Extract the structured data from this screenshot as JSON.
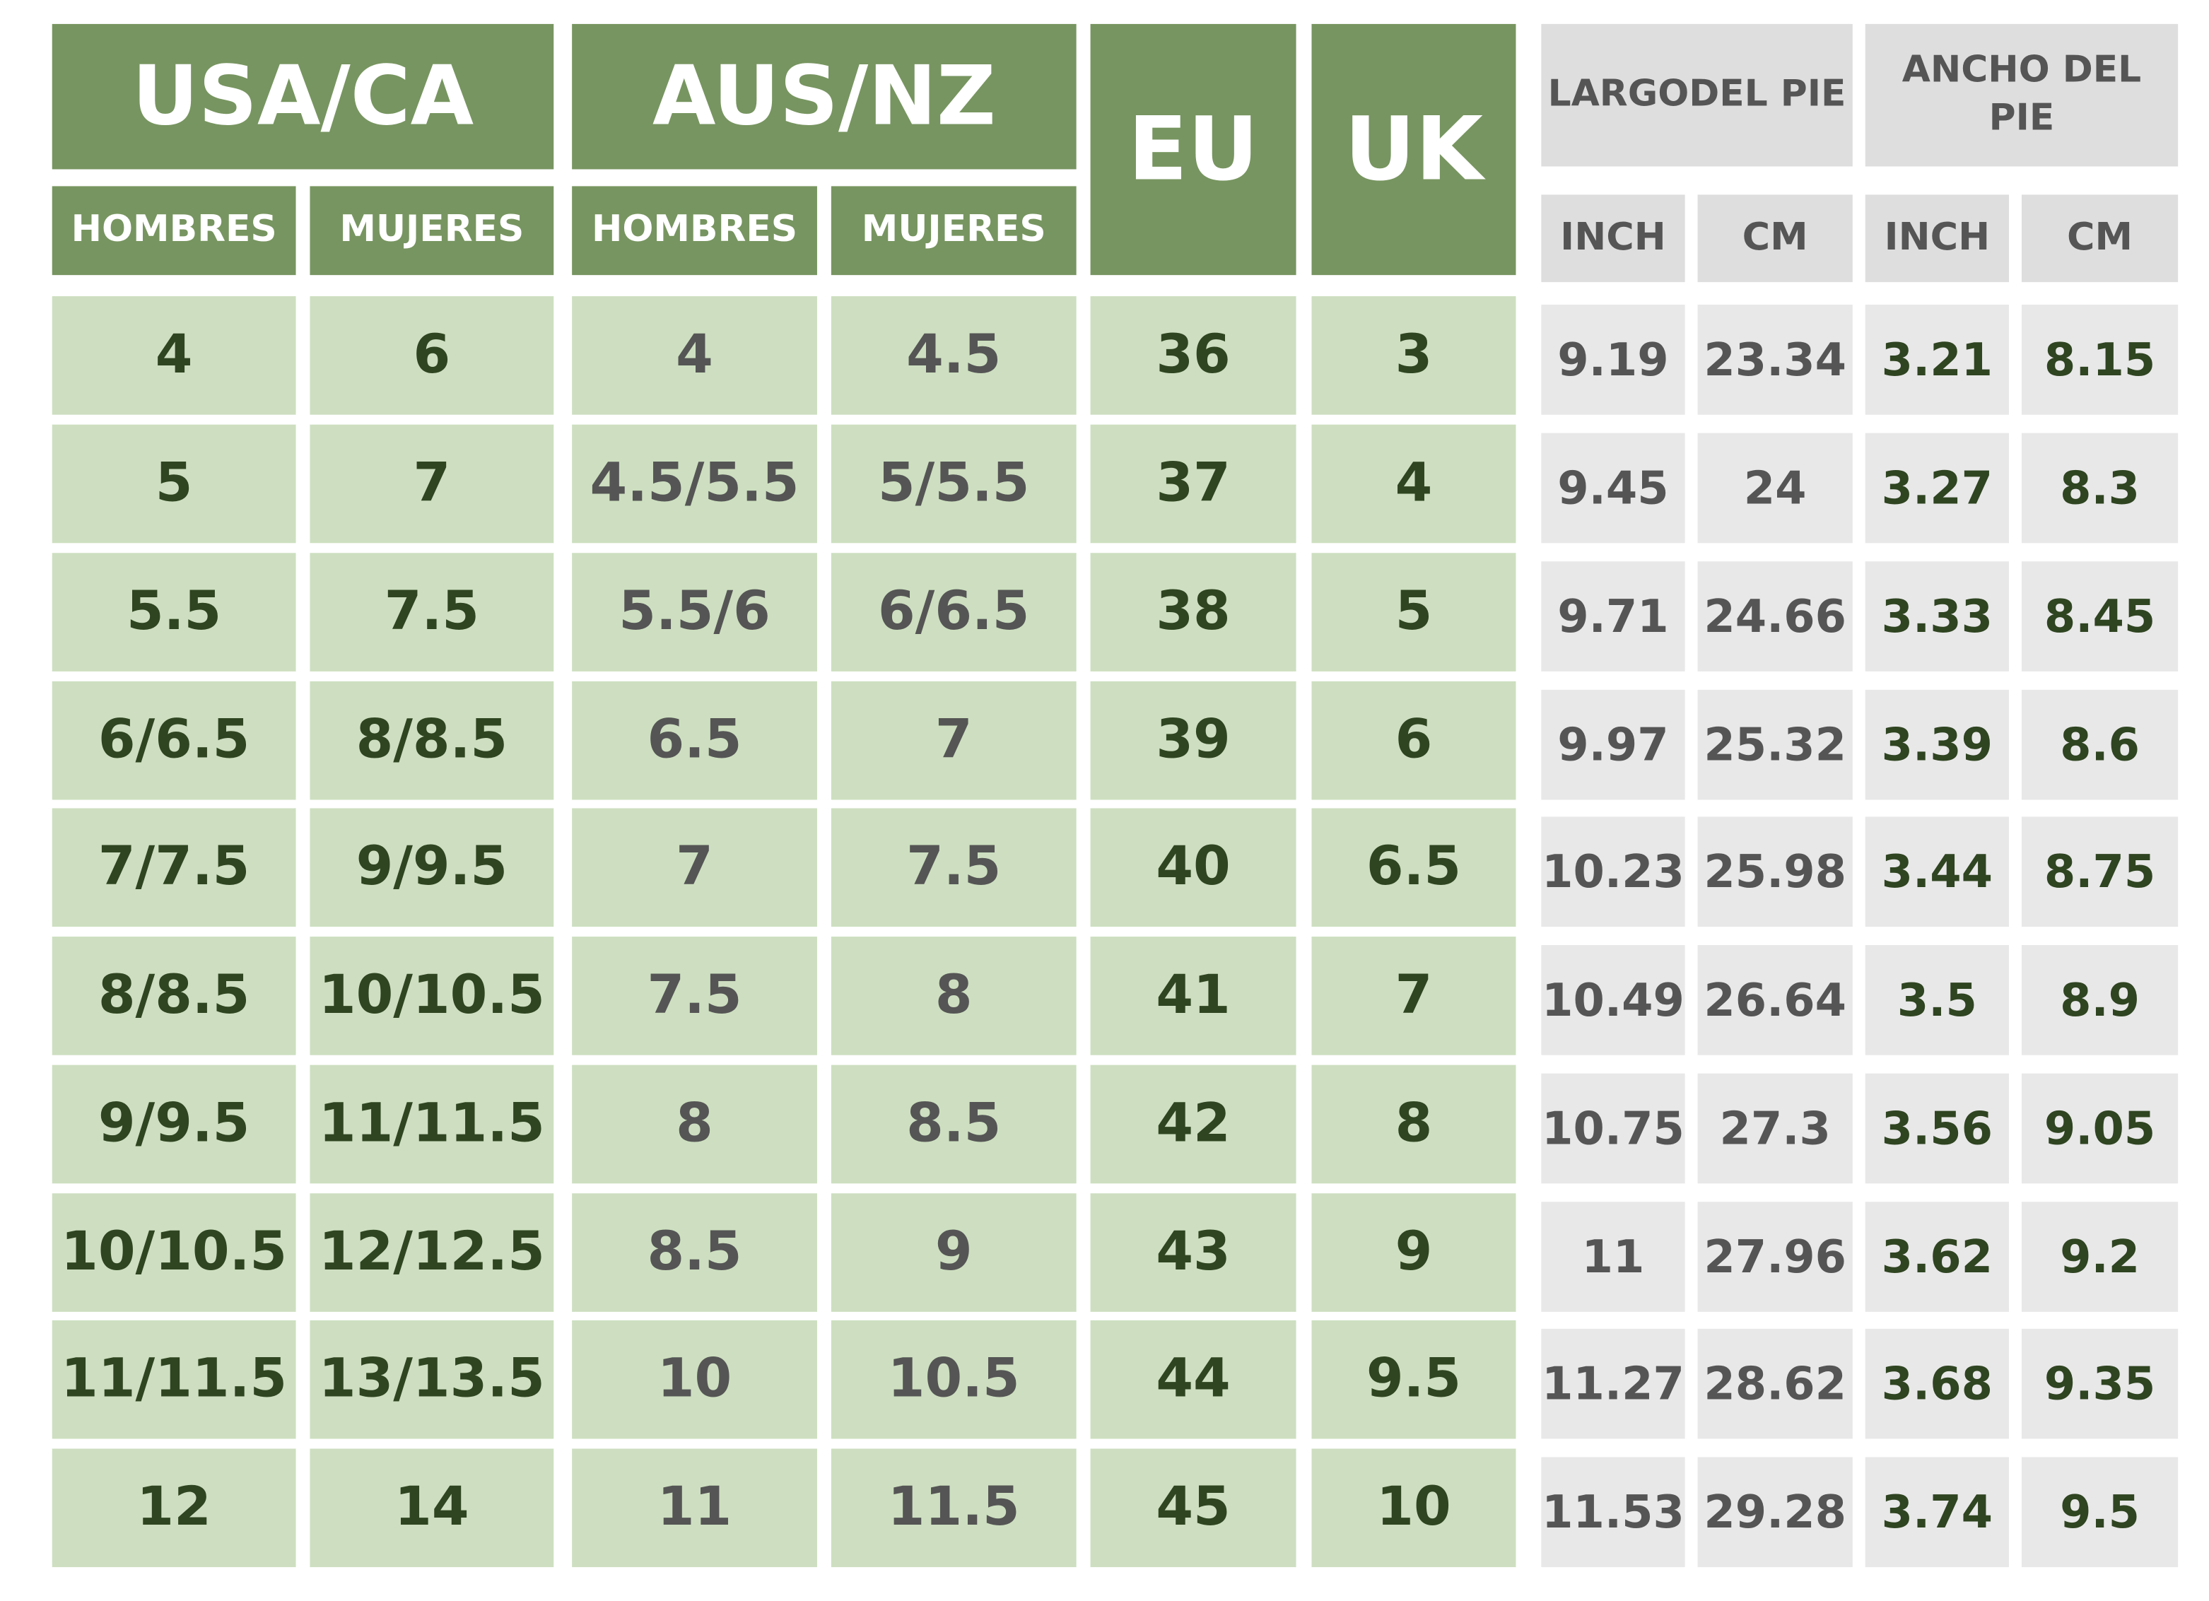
{
  "header": {
    "groups": [
      "USA/CA",
      "AUS/NZ",
      "EU",
      "UK",
      "LARGODEL PIE",
      "ANCHO DEL PIE"
    ],
    "subheaders": [
      "HOMBRES",
      "MUJERES",
      "HOMBRES",
      "MUJERES",
      "INCH",
      "CM",
      "INCH",
      "CM"
    ]
  },
  "table": {
    "rows": [
      [
        "4",
        "6",
        "4",
        "4.5",
        "36",
        "3",
        "9.19",
        "23.34",
        "3.21",
        "8.15"
      ],
      [
        "5",
        "7",
        "4.5/5.5",
        "5/5.5",
        "37",
        "4",
        "9.45",
        "24",
        "3.27",
        "8.3"
      ],
      [
        "5.5",
        "7.5",
        "5.5/6",
        "6/6.5",
        "38",
        "5",
        "9.71",
        "24.66",
        "3.33",
        "8.45"
      ],
      [
        "6/6.5",
        "8/8.5",
        "6.5",
        "7",
        "39",
        "6",
        "9.97",
        "25.32",
        "3.39",
        "8.6"
      ],
      [
        "7/7.5",
        "9/9.5",
        "7",
        "7.5",
        "40",
        "6.5",
        "10.23",
        "25.98",
        "3.44",
        "8.75"
      ],
      [
        "8/8.5",
        "10/10.5",
        "7.5",
        "8",
        "41",
        "7",
        "10.49",
        "26.64",
        "3.5",
        "8.9"
      ],
      [
        "9/9.5",
        "11/11.5",
        "8",
        "8.5",
        "42",
        "8",
        "10.75",
        "27.3",
        "3.56",
        "9.05"
      ],
      [
        "10/10.5",
        "12/12.5",
        "8.5",
        "9",
        "43",
        "9",
        "11",
        "27.96",
        "3.62",
        "9.2"
      ],
      [
        "11/11.5",
        "13/13.5",
        "10",
        "10.5",
        "44",
        "9.5",
        "11.27",
        "28.62",
        "3.68",
        "9.35"
      ],
      [
        "12",
        "14",
        "11",
        "11.5",
        "45",
        "10",
        "11.53",
        "29.28",
        "3.74",
        "9.5"
      ]
    ]
  }
}
